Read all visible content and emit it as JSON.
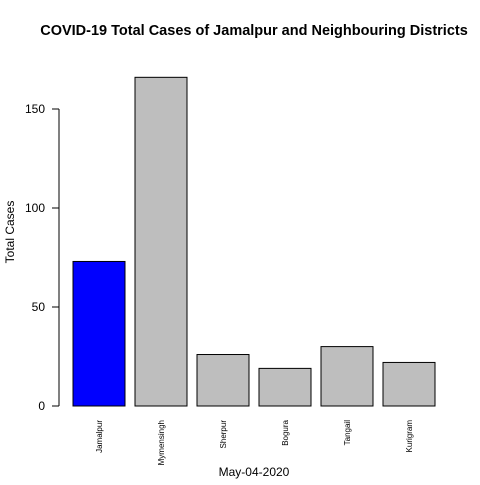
{
  "chart_data": {
    "type": "bar",
    "title": "COVID-19 Total Cases of Jamalpur and Neighbouring Districts",
    "xlabel": "May-04-2020",
    "ylabel": "Total Cases",
    "categories": [
      "Jamalpur",
      "Mymensingh",
      "Sherpur",
      "Bogura",
      "Tangail",
      "Kurigram"
    ],
    "values": [
      73,
      166,
      26,
      19,
      30,
      22
    ],
    "colors": [
      "#0000ff",
      "#bebebe",
      "#bebebe",
      "#bebebe",
      "#bebebe",
      "#bebebe"
    ],
    "ylim": [
      0,
      166
    ],
    "yticks": [
      0,
      50,
      100,
      150
    ],
    "grid": false,
    "legend": "none"
  }
}
